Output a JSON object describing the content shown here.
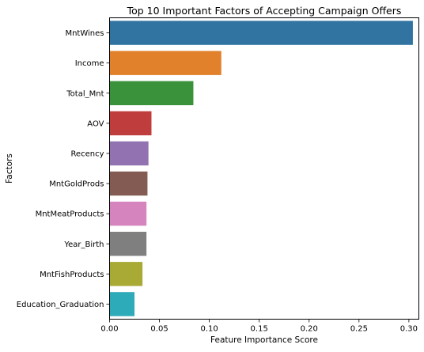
{
  "chart_data": {
    "type": "bar",
    "orientation": "horizontal",
    "title": "Top 10 Important Factors of Accepting Campaign Offers",
    "xlabel": "Feature Importance Score",
    "ylabel": "Factors",
    "xlim": [
      0,
      0.31
    ],
    "xticks": [
      "0.00",
      "0.05",
      "0.10",
      "0.15",
      "0.20",
      "0.25",
      "0.30"
    ],
    "grid": false,
    "categories": [
      "MntWines",
      "Income",
      "Total_Mnt",
      "AOV",
      "Recency",
      "MntGoldProds",
      "MntMeatProducts",
      "Year_Birth",
      "MntFishProducts",
      "Education_Graduation"
    ],
    "values": [
      0.304,
      0.112,
      0.084,
      0.042,
      0.039,
      0.038,
      0.037,
      0.037,
      0.033,
      0.025
    ],
    "colors": [
      "#3274a1",
      "#e1812c",
      "#3a923a",
      "#c03d3e",
      "#9372b2",
      "#845b53",
      "#d684bd",
      "#7f7f7f",
      "#a9aa35",
      "#2eabb8"
    ]
  }
}
